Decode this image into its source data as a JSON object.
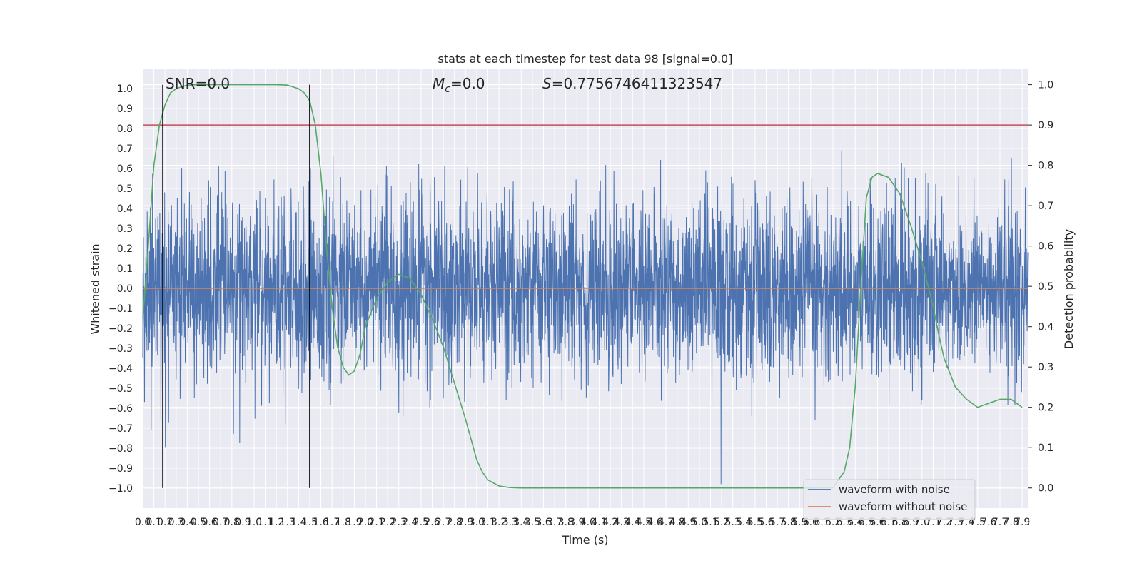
{
  "chart_data": {
    "type": "line",
    "title": "stats at each timestep for test data 98 [signal=0.0]",
    "xlabel": "Time (s)",
    "ylabel": "Whitened strain",
    "y2label": "Detection probability",
    "xlim": [
      0.0,
      7.95
    ],
    "ylim": [
      -1.1,
      1.1
    ],
    "y2lim": [
      -0.05,
      1.04
    ],
    "x_ticks": [
      "0.0",
      "0.1",
      "0.2",
      "0.3",
      "0.4",
      "0.5",
      "0.6",
      "0.7",
      "0.8",
      "0.9",
      "1.0",
      "1.1",
      "1.2",
      "1.3",
      "1.4",
      "1.5",
      "1.6",
      "1.7",
      "1.8",
      "1.9",
      "2.0",
      "2.1",
      "2.2",
      "2.3",
      "2.4",
      "2.5",
      "2.6",
      "2.7",
      "2.8",
      "2.9",
      "3.0",
      "3.1",
      "3.2",
      "3.3",
      "3.4",
      "3.5",
      "3.6",
      "3.7",
      "3.8",
      "3.9",
      "4.0",
      "4.1",
      "4.2",
      "4.3",
      "4.4",
      "4.5",
      "4.6",
      "4.7",
      "4.8",
      "4.9",
      "5.0",
      "5.1",
      "5.2",
      "5.3",
      "5.4",
      "5.5",
      "5.6",
      "5.7",
      "5.8",
      "5.9",
      "6.0",
      "6.1",
      "6.2",
      "6.3",
      "6.4",
      "6.5",
      "6.6",
      "6.7",
      "6.8",
      "6.9",
      "7.0",
      "7.1",
      "7.2",
      "7.3",
      "7.4",
      "7.5",
      "7.6",
      "7.7",
      "7.8",
      "7.9"
    ],
    "y_ticks": [
      "1.0",
      "0.9",
      "0.8",
      "0.7",
      "0.6",
      "0.5",
      "0.4",
      "0.3",
      "0.2",
      "0.1",
      "0.0",
      "−0.1",
      "−0.2",
      "−0.3",
      "−0.4",
      "−0.5",
      "−0.6",
      "−0.7",
      "−0.8",
      "−0.9",
      "−1.0"
    ],
    "y2_ticks": [
      "1.0",
      "0.9",
      "0.8",
      "0.7",
      "0.6",
      "0.5",
      "0.4",
      "0.3",
      "0.2",
      "0.1",
      "0.0"
    ],
    "annotations": {
      "snr": "SNR=0.0",
      "mc_symbol": "M",
      "mc_sub": "c",
      "mc_value": "=0.0",
      "s_symbol": "S",
      "s_value": "=0.7756746411323547"
    },
    "vertical_lines_x": [
      0.18,
      1.5
    ],
    "threshold_y2": 0.9,
    "noise_seed": 98,
    "noise_sigma": 0.22,
    "series": [
      {
        "name": "waveform with noise",
        "color": "#4c72b0",
        "axis": "left"
      },
      {
        "name": "waveform without noise",
        "color": "#dd8452",
        "axis": "left",
        "values_constant": 0.0
      },
      {
        "name": "",
        "color": "#55a868",
        "axis": "right",
        "x": [
          0.0,
          0.05,
          0.1,
          0.15,
          0.2,
          0.25,
          0.3,
          0.35,
          0.4,
          0.5,
          0.6,
          0.8,
          1.0,
          1.2,
          1.3,
          1.4,
          1.45,
          1.5,
          1.55,
          1.6,
          1.65,
          1.7,
          1.75,
          1.8,
          1.85,
          1.9,
          1.95,
          2.0,
          2.1,
          2.2,
          2.3,
          2.4,
          2.5,
          2.6,
          2.7,
          2.8,
          2.9,
          3.0,
          3.05,
          3.1,
          3.2,
          3.3,
          3.4,
          3.6,
          4.0,
          5.0,
          6.0,
          6.2,
          6.3,
          6.35,
          6.4,
          6.45,
          6.5,
          6.55,
          6.6,
          6.7,
          6.8,
          6.9,
          7.0,
          7.1,
          7.15,
          7.2,
          7.3,
          7.4,
          7.5,
          7.6,
          7.7,
          7.8,
          7.85,
          7.9
        ],
        "values": [
          0.42,
          0.6,
          0.8,
          0.9,
          0.95,
          0.98,
          0.99,
          0.995,
          0.999,
          1.0,
          1.0,
          1.0,
          1.0,
          1.0,
          0.999,
          0.99,
          0.98,
          0.96,
          0.9,
          0.78,
          0.6,
          0.45,
          0.35,
          0.3,
          0.28,
          0.29,
          0.33,
          0.4,
          0.47,
          0.51,
          0.53,
          0.52,
          0.48,
          0.42,
          0.35,
          0.26,
          0.17,
          0.07,
          0.04,
          0.02,
          0.005,
          0.001,
          0.0,
          0.0,
          0.0,
          0.0,
          0.0,
          0.001,
          0.04,
          0.1,
          0.25,
          0.5,
          0.72,
          0.77,
          0.78,
          0.77,
          0.73,
          0.65,
          0.56,
          0.45,
          0.38,
          0.32,
          0.25,
          0.22,
          0.2,
          0.21,
          0.22,
          0.22,
          0.21,
          0.2
        ]
      }
    ],
    "legend": {
      "position": "lower-right",
      "entries": [
        {
          "label": "waveform with noise",
          "color": "#4c72b0"
        },
        {
          "label": "waveform without noise",
          "color": "#dd8452"
        }
      ]
    },
    "grid": true
  }
}
